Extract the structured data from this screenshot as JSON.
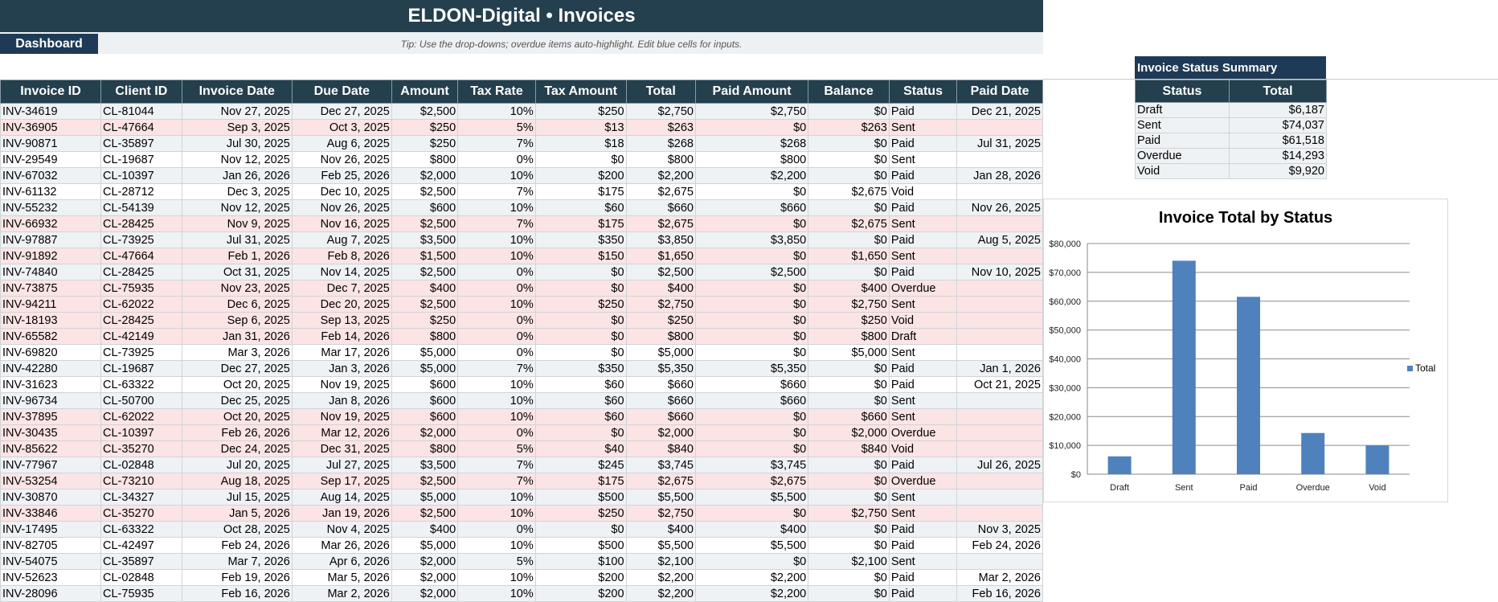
{
  "header": {
    "title": "ELDON-Digital • Invoices"
  },
  "nav": {
    "dashboard_label": "Dashboard",
    "tip": "Tip: Use the drop-downs; overdue items auto-highlight. Edit blue cells for inputs."
  },
  "invoices": {
    "columns": [
      "Invoice ID",
      "Client ID",
      "Invoice Date",
      "Due Date",
      "Amount",
      "Tax Rate",
      "Tax Amount",
      "Total",
      "Paid Amount",
      "Balance",
      "Status",
      "Paid Date"
    ],
    "rows": [
      [
        "INV-34619",
        "CL-81044",
        "Nov 27, 2025",
        "Dec 27, 2025",
        "$2,500",
        "10%",
        "$250",
        "$2,750",
        "$2,750",
        "$0",
        "Paid",
        "Dec 21, 2025"
      ],
      [
        "INV-36905",
        "CL-47664",
        "Sep 3, 2025",
        "Oct 3, 2025",
        "$250",
        "5%",
        "$13",
        "$263",
        "$0",
        "$263",
        "Sent",
        ""
      ],
      [
        "INV-90871",
        "CL-35897",
        "Jul 30, 2025",
        "Aug 6, 2025",
        "$250",
        "7%",
        "$18",
        "$268",
        "$268",
        "$0",
        "Paid",
        "Jul 31, 2025"
      ],
      [
        "INV-29549",
        "CL-19687",
        "Nov 12, 2025",
        "Nov 26, 2025",
        "$800",
        "0%",
        "$0",
        "$800",
        "$800",
        "$0",
        "Sent",
        ""
      ],
      [
        "INV-67032",
        "CL-10397",
        "Jan 26, 2026",
        "Feb 25, 2026",
        "$2,000",
        "10%",
        "$200",
        "$2,200",
        "$2,200",
        "$0",
        "Paid",
        "Jan 28, 2026"
      ],
      [
        "INV-61132",
        "CL-28712",
        "Dec 3, 2025",
        "Dec 10, 2025",
        "$2,500",
        "7%",
        "$175",
        "$2,675",
        "$0",
        "$2,675",
        "Void",
        ""
      ],
      [
        "INV-55232",
        "CL-54139",
        "Nov 12, 2025",
        "Nov 26, 2025",
        "$600",
        "10%",
        "$60",
        "$660",
        "$660",
        "$0",
        "Paid",
        "Nov 26, 2025"
      ],
      [
        "INV-66932",
        "CL-28425",
        "Nov 9, 2025",
        "Nov 16, 2025",
        "$2,500",
        "7%",
        "$175",
        "$2,675",
        "$0",
        "$2,675",
        "Sent",
        ""
      ],
      [
        "INV-97887",
        "CL-73925",
        "Jul 31, 2025",
        "Aug 7, 2025",
        "$3,500",
        "10%",
        "$350",
        "$3,850",
        "$3,850",
        "$0",
        "Paid",
        "Aug 5, 2025"
      ],
      [
        "INV-91892",
        "CL-47664",
        "Feb 1, 2026",
        "Feb 8, 2026",
        "$1,500",
        "10%",
        "$150",
        "$1,650",
        "$0",
        "$1,650",
        "Sent",
        ""
      ],
      [
        "INV-74840",
        "CL-28425",
        "Oct 31, 2025",
        "Nov 14, 2025",
        "$2,500",
        "0%",
        "$0",
        "$2,500",
        "$2,500",
        "$0",
        "Paid",
        "Nov 10, 2025"
      ],
      [
        "INV-73875",
        "CL-75935",
        "Nov 23, 2025",
        "Dec 7, 2025",
        "$400",
        "0%",
        "$0",
        "$400",
        "$0",
        "$400",
        "Overdue",
        ""
      ],
      [
        "INV-94211",
        "CL-62022",
        "Dec 6, 2025",
        "Dec 20, 2025",
        "$2,500",
        "10%",
        "$250",
        "$2,750",
        "$0",
        "$2,750",
        "Sent",
        ""
      ],
      [
        "INV-18193",
        "CL-28425",
        "Sep 6, 2025",
        "Sep 13, 2025",
        "$250",
        "0%",
        "$0",
        "$250",
        "$0",
        "$250",
        "Void",
        ""
      ],
      [
        "INV-65582",
        "CL-42149",
        "Jan 31, 2026",
        "Feb 14, 2026",
        "$800",
        "0%",
        "$0",
        "$800",
        "$0",
        "$800",
        "Draft",
        ""
      ],
      [
        "INV-69820",
        "CL-73925",
        "Mar 3, 2026",
        "Mar 17, 2026",
        "$5,000",
        "0%",
        "$0",
        "$5,000",
        "$0",
        "$5,000",
        "Sent",
        ""
      ],
      [
        "INV-42280",
        "CL-19687",
        "Dec 27, 2025",
        "Jan 3, 2026",
        "$5,000",
        "7%",
        "$350",
        "$5,350",
        "$5,350",
        "$0",
        "Paid",
        "Jan 1, 2026"
      ],
      [
        "INV-31623",
        "CL-63322",
        "Oct 20, 2025",
        "Nov 19, 2025",
        "$600",
        "10%",
        "$60",
        "$660",
        "$660",
        "$0",
        "Paid",
        "Oct 21, 2025"
      ],
      [
        "INV-96734",
        "CL-50700",
        "Dec 25, 2025",
        "Jan 8, 2026",
        "$600",
        "10%",
        "$60",
        "$660",
        "$660",
        "$0",
        "Sent",
        ""
      ],
      [
        "INV-37895",
        "CL-62022",
        "Oct 20, 2025",
        "Nov 19, 2025",
        "$600",
        "10%",
        "$60",
        "$660",
        "$0",
        "$660",
        "Sent",
        ""
      ],
      [
        "INV-30435",
        "CL-10397",
        "Feb 26, 2026",
        "Mar 12, 2026",
        "$2,000",
        "0%",
        "$0",
        "$2,000",
        "$0",
        "$2,000",
        "Overdue",
        ""
      ],
      [
        "INV-85622",
        "CL-35270",
        "Dec 24, 2025",
        "Dec 31, 2025",
        "$800",
        "5%",
        "$40",
        "$840",
        "$0",
        "$840",
        "Void",
        ""
      ],
      [
        "INV-77967",
        "CL-02848",
        "Jul 20, 2025",
        "Jul 27, 2025",
        "$3,500",
        "7%",
        "$245",
        "$3,745",
        "$3,745",
        "$0",
        "Paid",
        "Jul 26, 2025"
      ],
      [
        "INV-53254",
        "CL-73210",
        "Aug 18, 2025",
        "Sep 17, 2025",
        "$2,500",
        "7%",
        "$175",
        "$2,675",
        "$2,675",
        "$0",
        "Overdue",
        ""
      ],
      [
        "INV-30870",
        "CL-34327",
        "Jul 15, 2025",
        "Aug 14, 2025",
        "$5,000",
        "10%",
        "$500",
        "$5,500",
        "$5,500",
        "$0",
        "Sent",
        ""
      ],
      [
        "INV-33846",
        "CL-35270",
        "Jan 5, 2026",
        "Jan 19, 2026",
        "$2,500",
        "10%",
        "$250",
        "$2,750",
        "$0",
        "$2,750",
        "Sent",
        ""
      ],
      [
        "INV-17495",
        "CL-63322",
        "Oct 28, 2025",
        "Nov 4, 2025",
        "$400",
        "0%",
        "$0",
        "$400",
        "$400",
        "$0",
        "Paid",
        "Nov 3, 2025"
      ],
      [
        "INV-82705",
        "CL-42497",
        "Feb 24, 2026",
        "Mar 26, 2026",
        "$5,000",
        "10%",
        "$500",
        "$5,500",
        "$5,500",
        "$0",
        "Paid",
        "Feb 24, 2026"
      ],
      [
        "INV-54075",
        "CL-35897",
        "Mar 7, 2026",
        "Apr 6, 2026",
        "$2,000",
        "5%",
        "$100",
        "$2,100",
        "$0",
        "$2,100",
        "Sent",
        ""
      ],
      [
        "INV-52623",
        "CL-02848",
        "Feb 19, 2026",
        "Mar 5, 2026",
        "$2,000",
        "10%",
        "$200",
        "$2,200",
        "$2,200",
        "$0",
        "Paid",
        "Mar 2, 2026"
      ],
      [
        "INV-28096",
        "CL-75935",
        "Feb 16, 2026",
        "Mar 2, 2026",
        "$2,000",
        "10%",
        "$200",
        "$2,200",
        "$2,200",
        "$0",
        "Paid",
        "Feb 16, 2026"
      ]
    ],
    "highlighted_rows": [
      1,
      7,
      9,
      11,
      12,
      13,
      14,
      19,
      20,
      21,
      23,
      25
    ]
  },
  "summary": {
    "title": "Invoice Status Summary",
    "columns": [
      "Status",
      "Total"
    ],
    "rows": [
      [
        "Draft",
        "$6,187"
      ],
      [
        "Sent",
        "$74,037"
      ],
      [
        "Paid",
        "$61,518"
      ],
      [
        "Overdue",
        "$14,293"
      ],
      [
        "Void",
        "$9,920"
      ]
    ]
  },
  "chart_data": {
    "type": "bar",
    "title": "Invoice Total by Status",
    "categories": [
      "Draft",
      "Sent",
      "Paid",
      "Overdue",
      "Void"
    ],
    "series": [
      {
        "name": "Total",
        "values": [
          6187,
          74037,
          61518,
          14293,
          9920
        ]
      }
    ],
    "ylim": [
      0,
      80000
    ],
    "yticks": [
      "$0",
      "$10,000",
      "$20,000",
      "$30,000",
      "$40,000",
      "$50,000",
      "$60,000",
      "$70,000",
      "$80,000"
    ],
    "grid": true,
    "legend_position": "right",
    "color": "#4f81bd"
  },
  "colors": {
    "header_bg": "#243f4e",
    "nav_bg": "#1f3a56",
    "alert_row": "#fce4e4",
    "stripe_row": "#eff2f4"
  }
}
